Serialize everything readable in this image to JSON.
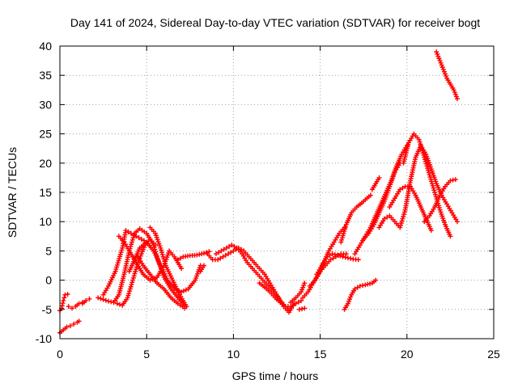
{
  "chart_data": {
    "type": "scatter",
    "title": "Day 141 of 2024, Sidereal Day-to-day VTEC variation (SDTVAR) for receiver bogt",
    "xlabel": "GPS time / hours",
    "ylabel": "SDTVAR / TECUs",
    "xlim": [
      0,
      25
    ],
    "ylim": [
      -10,
      40
    ],
    "xticks": [
      0,
      5,
      10,
      15,
      20,
      25
    ],
    "yticks": [
      -10,
      -5,
      0,
      5,
      10,
      15,
      20,
      25,
      30,
      35,
      40
    ],
    "grid": true,
    "legend": "none",
    "marker": "plus",
    "color": "#ff0000",
    "series": [
      {
        "x": [
          0.0,
          0.1,
          0.2,
          0.3,
          0.45
        ],
        "y": [
          -5.2,
          -4.8,
          -3.5,
          -2.5,
          -2.4
        ]
      },
      {
        "x": [
          0.0,
          0.2,
          0.4,
          0.6,
          0.8,
          1.0,
          1.1
        ],
        "y": [
          -9.0,
          -8.5,
          -8.0,
          -7.8,
          -7.5,
          -7.2,
          -7.0
        ]
      },
      {
        "x": [
          0.5,
          0.7,
          0.9,
          1.1,
          1.3
        ],
        "y": [
          -4.5,
          -4.8,
          -4.5,
          -4.0,
          -3.8
        ]
      },
      {
        "x": [
          1.3,
          1.5,
          1.7
        ],
        "y": [
          -4.0,
          -3.5,
          -3.2
        ]
      },
      {
        "x": [
          2.2,
          2.5,
          2.8,
          3.1,
          3.4,
          3.7,
          4.0,
          4.3,
          4.6,
          5.0,
          5.4,
          5.7,
          6.0,
          6.4,
          6.8,
          7.2
        ],
        "y": [
          -3.0,
          -3.3,
          -3.6,
          -3.8,
          -2.5,
          1.0,
          5.0,
          8.0,
          8.8,
          8.0,
          6.0,
          3.0,
          0.5,
          -1.5,
          -3.0,
          -4.5
        ]
      },
      {
        "x": [
          2.5,
          2.8,
          3.2,
          3.6,
          3.8,
          4.1,
          4.4,
          4.7,
          5.0
        ],
        "y": [
          -2.5,
          -1.0,
          1.5,
          5.5,
          8.5,
          8.0,
          7.5,
          7.0,
          6.5
        ]
      },
      {
        "x": [
          3.3,
          3.6,
          3.9,
          4.2,
          4.5,
          4.9,
          5.2,
          5.5
        ],
        "y": [
          -4.0,
          -4.3,
          -3.0,
          0.0,
          3.0,
          6.0,
          7.0,
          6.0
        ]
      },
      {
        "x": [
          3.4,
          3.7,
          4.0,
          4.4,
          4.8,
          5.2,
          5.6,
          6.0,
          6.3,
          6.6,
          7.0
        ],
        "y": [
          7.5,
          6.5,
          5.0,
          3.0,
          1.0,
          0.0,
          0.5,
          2.5,
          5.0,
          4.0,
          2.0
        ]
      },
      {
        "x": [
          4.0,
          4.3,
          4.6,
          5.0,
          5.4,
          5.8,
          6.2,
          6.6,
          7.0,
          7.4,
          7.8,
          8.1
        ],
        "y": [
          1.5,
          3.5,
          5.5,
          6.5,
          5.0,
          2.5,
          0.0,
          -1.5,
          -2.0,
          -1.5,
          0.0,
          2.5
        ]
      },
      {
        "x": [
          5.2,
          5.5,
          5.8,
          6.1,
          6.5,
          6.9,
          7.3
        ],
        "y": [
          9.0,
          8.0,
          5.5,
          2.5,
          0.0,
          -2.5,
          -4.5
        ]
      },
      {
        "x": [
          4.5,
          4.8,
          5.2,
          5.6,
          6.0,
          6.4,
          6.8,
          7.2
        ],
        "y": [
          4.0,
          2.5,
          1.0,
          -0.5,
          -1.5,
          -3.0,
          -4.0,
          -4.8
        ]
      },
      {
        "x": [
          6.8,
          7.1,
          7.5,
          7.9,
          8.3,
          8.6
        ],
        "y": [
          3.5,
          4.0,
          4.2,
          4.3,
          4.6,
          4.9
        ]
      },
      {
        "x": [
          8.1,
          8.3
        ],
        "y": [
          1.5,
          2.5
        ]
      },
      {
        "x": [
          8.5,
          8.8,
          9.1,
          9.4,
          9.7,
          10.0,
          10.3,
          10.6,
          10.9,
          11.2,
          11.5,
          11.8,
          12.1,
          12.4,
          12.7,
          13.0,
          13.3,
          13.6,
          13.9
        ],
        "y": [
          4.5,
          3.5,
          3.5,
          4.0,
          4.5,
          5.0,
          5.5,
          5.0,
          4.0,
          3.0,
          2.0,
          1.0,
          -0.5,
          -2.0,
          -3.5,
          -4.5,
          -4.5,
          -4.0,
          -3.5
        ]
      },
      {
        "x": [
          9.0,
          9.3,
          9.6,
          9.9,
          10.2,
          10.5,
          10.8,
          11.1,
          11.4,
          11.7,
          12.0,
          12.3,
          12.6,
          12.9,
          13.2,
          13.5
        ],
        "y": [
          4.5,
          5.0,
          5.5,
          6.0,
          5.5,
          4.5,
          3.0,
          2.0,
          1.0,
          0.0,
          -1.0,
          -2.0,
          -3.0,
          -4.5,
          -5.5,
          -4.0
        ]
      },
      {
        "x": [
          11.5,
          11.8,
          12.1,
          12.4,
          12.7,
          13.0,
          13.2
        ],
        "y": [
          -0.5,
          -1.2,
          -2.0,
          -3.0,
          -3.8,
          -4.5,
          -5.2
        ]
      },
      {
        "x": [
          13.3,
          13.6,
          13.9,
          14.1
        ],
        "y": [
          -3.8,
          -3.0,
          -2.0,
          -0.5
        ]
      },
      {
        "x": [
          13.8,
          14.1
        ],
        "y": [
          -5.0,
          -4.8
        ]
      },
      {
        "x": [
          14.0,
          14.3,
          14.6,
          14.9,
          15.2,
          15.5,
          15.8,
          16.1,
          16.4
        ],
        "y": [
          -3.0,
          -2.0,
          -0.5,
          1.0,
          3.0,
          5.0,
          6.5,
          8.0,
          9.0
        ]
      },
      {
        "x": [
          14.4,
          14.7,
          15.0,
          15.3,
          15.6,
          15.9,
          16.2,
          16.5
        ],
        "y": [
          -1.0,
          0.0,
          1.5,
          2.5,
          3.5,
          4.0,
          4.5,
          4.5
        ]
      },
      {
        "x": [
          14.8,
          15.1,
          15.4,
          15.7,
          16.0,
          16.3,
          16.6,
          16.9,
          17.2
        ],
        "y": [
          1.0,
          2.5,
          4.0,
          4.5,
          4.3,
          4.0,
          3.8,
          3.6,
          3.5
        ]
      },
      {
        "x": [
          16.2,
          16.5,
          16.8,
          17.1,
          17.4,
          17.7,
          17.9
        ],
        "y": [
          6.5,
          9.5,
          11.5,
          12.5,
          13.2,
          14.0,
          14.5
        ]
      },
      {
        "x": [
          16.4,
          16.6,
          16.8,
          17.0,
          17.3,
          17.6,
          18.0,
          18.2
        ],
        "y": [
          -5.0,
          -4.0,
          -2.5,
          -1.5,
          -1.0,
          -0.8,
          -0.5,
          0.0
        ]
      },
      {
        "x": [
          17.0,
          17.3,
          17.6,
          17.9,
          18.2,
          18.5,
          18.8,
          19.1,
          19.4,
          19.7,
          20.0
        ],
        "y": [
          4.5,
          6.0,
          7.5,
          9.0,
          11.0,
          13.0,
          15.0,
          17.0,
          19.5,
          21.5,
          23.0
        ]
      },
      {
        "x": [
          17.5,
          17.8,
          18.1,
          18.4,
          18.7,
          19.0,
          19.3,
          19.6
        ],
        "y": [
          7.0,
          8.0,
          9.5,
          11.5,
          13.5,
          16.0,
          18.5,
          20.0
        ]
      },
      {
        "x": [
          18.0,
          18.2,
          18.4
        ],
        "y": [
          15.5,
          16.5,
          17.5
        ]
      },
      {
        "x": [
          18.4,
          18.7,
          19.0,
          19.3,
          19.6,
          19.9,
          20.2,
          20.5,
          20.8,
          21.1,
          21.4,
          21.7,
          22.0,
          22.3,
          22.6,
          22.9
        ],
        "y": [
          9.0,
          10.5,
          11.0,
          10.0,
          9.0,
          12.0,
          17.0,
          21.0,
          23.0,
          21.5,
          19.0,
          16.5,
          14.5,
          13.0,
          11.5,
          10.0
        ]
      },
      {
        "x": [
          19.0,
          19.3,
          19.6,
          19.9,
          20.2,
          20.5,
          20.8,
          21.1,
          21.4
        ],
        "y": [
          12.5,
          14.0,
          15.5,
          16.0,
          16.0,
          14.5,
          12.5,
          10.5,
          8.5
        ]
      },
      {
        "x": [
          19.8,
          20.1,
          20.4,
          20.7,
          21.0,
          21.3,
          21.6,
          21.9,
          22.2,
          22.5
        ],
        "y": [
          20.0,
          23.5,
          25.0,
          24.0,
          21.0,
          18.0,
          15.0,
          12.0,
          9.5,
          7.5
        ]
      },
      {
        "x": [
          21.0,
          21.3,
          21.6,
          21.9,
          22.2,
          22.5,
          22.8
        ],
        "y": [
          10.0,
          11.0,
          12.5,
          14.5,
          16.0,
          17.0,
          17.2
        ]
      },
      {
        "x": [
          21.7,
          21.9,
          22.1,
          22.3,
          22.5,
          22.7,
          22.9
        ],
        "y": [
          39.0,
          37.5,
          36.0,
          34.5,
          33.5,
          32.5,
          31.0
        ]
      }
    ]
  }
}
